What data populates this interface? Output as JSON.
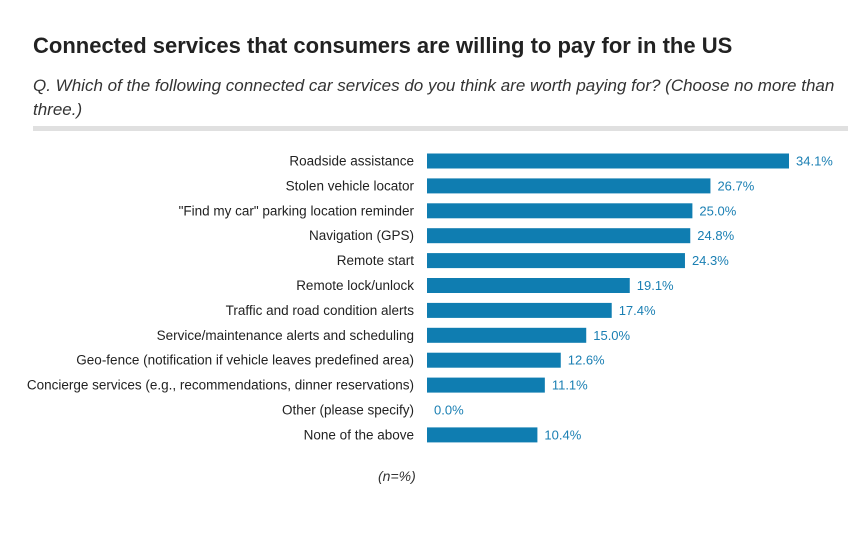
{
  "title": "Connected services that consumers are willing to pay for in the US",
  "subtitle": "Q. Which of the following connected car services do you think are worth paying for? (Choose no more than three.)",
  "note": "(n=%)",
  "colors": {
    "bar": "#0f7db1",
    "value_label": "#1a7fb3",
    "category_label": "#222222"
  },
  "chart_data": {
    "type": "bar",
    "orientation": "horizontal",
    "categories": [
      "Roadside assistance",
      "Stolen vehicle locator",
      "\"Find my car\" parking location reminder",
      "Navigation (GPS)",
      "Remote start",
      "Remote lock/unlock",
      "Traffic and road condition alerts",
      "Service/maintenance alerts and scheduling",
      "Geo-fence (notification if vehicle leaves predefined area)",
      "Concierge services (e.g., recommendations, dinner reservations)",
      "Other (please specify)",
      "None of the above"
    ],
    "values": [
      34.1,
      26.7,
      25.0,
      24.8,
      24.3,
      19.1,
      17.4,
      15.0,
      12.6,
      11.1,
      0.0,
      10.4
    ],
    "value_labels": [
      "34.1%",
      "26.7%",
      "25.0%",
      "24.8%",
      "24.3%",
      "19.1%",
      "17.4%",
      "15.0%",
      "12.6%",
      "11.1%",
      "0.0%",
      "10.4%"
    ],
    "unit": "%",
    "xlim": [
      0,
      34.1
    ],
    "grid": false,
    "legend": "none"
  }
}
